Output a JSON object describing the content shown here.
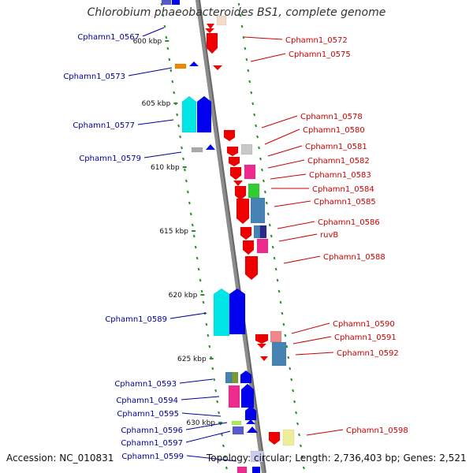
{
  "title": "Chlorobium phaeobacteroides BS1, complete genome",
  "footer": {
    "accession": "Accession: NC_010831",
    "topology": "Topology: circular; Length: 2,736,403 bp; Genes: 2,521"
  },
  "colors": {
    "left_label": "#00009b",
    "right_label": "#cc0000",
    "backbone": "#8c8c8c",
    "tick": "#2e8b2e",
    "blue": "#0000ee",
    "red": "#ee0000",
    "cyan": "#00e5e5",
    "steelblue": "#4682b4",
    "magenta": "#ee2a8f",
    "green": "#33cc33",
    "orange": "#ee8800",
    "gray": "#aaaaaa",
    "slate": "#5a5ad0",
    "yellow": "#eeee99",
    "pink": "#ee8888"
  },
  "scale_labels": [
    "600 kbp",
    "605 kbp",
    "610 kbp",
    "615 kbp",
    "620 kbp",
    "625 kbp",
    "630 kbp"
  ],
  "left_labels": [
    "Cphamn1_0567",
    "Cphamn1_0573",
    "Cphamn1_0577",
    "Cphamn1_0579",
    "Cphamn1_0589",
    "Cphamn1_0593",
    "Cphamn1_0594",
    "Cphamn1_0595",
    "Cphamn1_0596",
    "Cphamn1_0597",
    "Cphamn1_0599"
  ],
  "right_labels": [
    "Cphamn1_0572",
    "Cphamn1_0575",
    "Cphamn1_0578",
    "Cphamn1_0580",
    "Cphamn1_0581",
    "Cphamn1_0582",
    "Cphamn1_0583",
    "Cphamn1_0584",
    "Cphamn1_0585",
    "Cphamn1_0586",
    "ruvB",
    "Cphamn1_0588",
    "Cphamn1_0590",
    "Cphamn1_0591",
    "Cphamn1_0592",
    "Cphamn1_0598"
  ]
}
